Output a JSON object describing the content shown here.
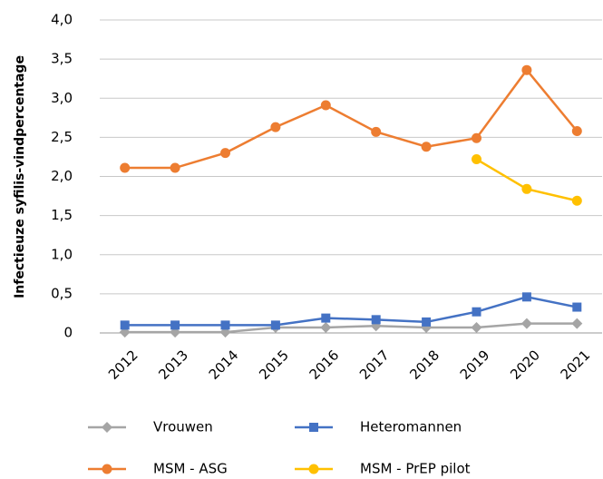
{
  "chart_data": {
    "type": "line",
    "y_label": "Infectieuze syfilis-vindpercentage",
    "categories": [
      "2012",
      "2013",
      "2014",
      "2015",
      "2016",
      "2017",
      "2018",
      "2019",
      "2020",
      "2021"
    ],
    "series": [
      {
        "name": "Vrouwen",
        "color": "#a5a5a5",
        "marker": "diamond",
        "values": [
          0.01,
          0.01,
          0.01,
          0.07,
          0.07,
          0.09,
          0.07,
          0.07,
          0.12,
          0.12
        ]
      },
      {
        "name": "Heteromannen",
        "color": "#4472c4",
        "marker": "square",
        "values": [
          0.1,
          0.1,
          0.1,
          0.1,
          0.19,
          0.17,
          0.14,
          0.27,
          0.46,
          0.33
        ]
      },
      {
        "name": "MSM - ASG",
        "color": "#ed7d31",
        "marker": "circle",
        "values": [
          2.11,
          2.11,
          2.3,
          2.63,
          2.91,
          2.57,
          2.38,
          2.49,
          3.36,
          2.58
        ]
      },
      {
        "name": "MSM - PrEP pilot",
        "color": "#ffc000",
        "marker": "circle",
        "values": [
          null,
          null,
          null,
          null,
          null,
          null,
          null,
          2.22,
          1.84,
          1.69
        ]
      }
    ],
    "ylim": [
      0,
      4
    ],
    "yticks": [
      0,
      {
        "value": 0.5,
        "label": "0,5"
      },
      {
        "value": 1,
        "label": "1,0"
      },
      {
        "value": 1.5,
        "label": "1,5"
      },
      {
        "value": 2,
        "label": "2,0"
      },
      {
        "value": 2.5,
        "label": "2,5"
      },
      {
        "value": 3,
        "label": "3,0"
      },
      {
        "value": 3.5,
        "label": "3,5"
      },
      {
        "value": 4,
        "label": "4,0"
      }
    ],
    "grid": true
  }
}
